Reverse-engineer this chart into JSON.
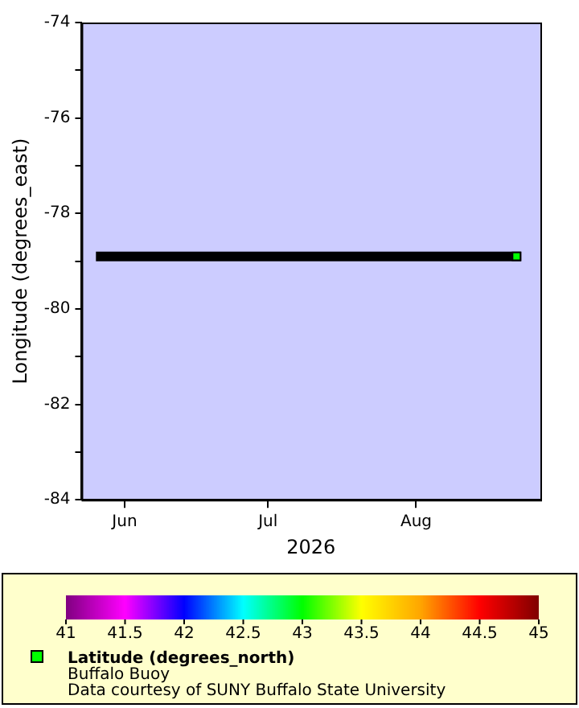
{
  "chart_data": {
    "type": "line",
    "title": "Buffalo Buoy",
    "xlabel": "2026",
    "ylabel": "Longitude (degrees_east)",
    "clabel": "Latitude (degrees_north)",
    "annotations": [
      "Data courtesy of SUNY Buffalo State University"
    ],
    "xlim": [
      "2026-05-23",
      "2026-08-27"
    ],
    "xticks": [
      {
        "value": "2026-06-01",
        "label": "Jun"
      },
      {
        "value": "2026-07-01",
        "label": "Jul"
      },
      {
        "value": "2026-08-01",
        "label": "Aug"
      }
    ],
    "ylim": [
      -84,
      -74
    ],
    "yticks": [
      -84,
      {
        "value": -83,
        "label": null
      },
      -82,
      {
        "value": -81,
        "label": null
      },
      -80,
      {
        "value": -79,
        "label": null
      },
      -78,
      {
        "value": -77,
        "label": null
      },
      -76,
      {
        "value": -75,
        "label": null
      },
      -74
    ],
    "clim": [
      41,
      45
    ],
    "cticks": [
      41,
      41.5,
      42,
      42.5,
      43,
      43.5,
      44,
      44.5,
      45
    ],
    "series": [
      {
        "type": "line",
        "color": "#000000",
        "x": [
          "2026-05-26",
          "2026-08-23"
        ],
        "values": [
          -78.9,
          -78.9
        ],
        "marker": "none",
        "line_style": "solid"
      },
      {
        "type": "scatter",
        "x": [
          "2026-08-22"
        ],
        "values": [
          -78.9
        ],
        "cvalues": [
          43
        ],
        "marker": "square"
      }
    ]
  }
}
